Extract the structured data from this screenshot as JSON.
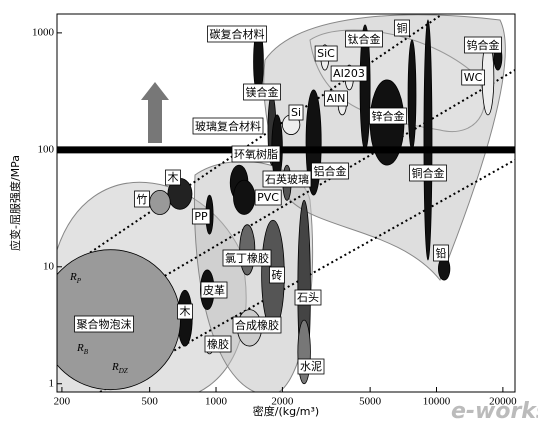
{
  "chart_data": {
    "type": "ashby",
    "xlabel": "密度/(kg/m³)",
    "ylabel": "应变-屈服强度/MPa",
    "xscale": "log",
    "yscale": "log",
    "xlim": [
      190,
      22700
    ],
    "ylim": [
      0.85,
      1450
    ],
    "xticks": [
      200,
      500,
      1000,
      2000,
      5000,
      10000,
      20000
    ],
    "yticks": [
      1,
      10,
      100,
      1000
    ],
    "reference_line": 100,
    "materials": [
      {
        "name": "碳复合材料",
        "density": [
          1480,
          1640
        ],
        "strength": [
          290,
          1100
        ],
        "color": "#111111"
      },
      {
        "name": "镁合金",
        "density": [
          1720,
          1870
        ],
        "strength": [
          74,
          295
        ],
        "color": "#333333"
      },
      {
        "name": "玻璃复合材料",
        "density": [
          1790,
          2000
        ],
        "strength": [
          55,
          199
        ],
        "color": "#111111"
      },
      {
        "name": "SiC",
        "density": [
          2990,
          3250
        ],
        "strength": [
          481,
          791
        ],
        "color": "#eeeeee"
      },
      {
        "name": "AI203",
        "density": [
          3850,
          4200
        ],
        "strength": [
          325,
          531
        ],
        "color": "#eeeeee"
      },
      {
        "name": "AlN",
        "density": [
          3580,
          3900
        ],
        "strength": [
          199,
          295
        ],
        "color": "#eeeeee"
      },
      {
        "name": "Si",
        "density": [
          2000,
          2400
        ],
        "strength": [
          135,
          199
        ],
        "color": "#eeeeee"
      },
      {
        "name": "钛合金",
        "density": [
          4500,
          5000
        ],
        "strength": [
          100,
          1170
        ],
        "color": "#111111"
      },
      {
        "name": "铜",
        "density": [
          7430,
          8070
        ],
        "strength": [
          100,
          870
        ],
        "color": "#111111"
      },
      {
        "name": "锌合金",
        "density": [
          5000,
          7120
        ],
        "strength": [
          74,
          396
        ],
        "color": "#111111"
      },
      {
        "name": "铜合金",
        "density": [
          8770,
          9540
        ],
        "strength": [
          11.4,
          1290
        ],
        "color": "#111111"
      },
      {
        "name": "钨合金",
        "density": [
          18200,
          19800
        ],
        "strength": [
          481,
          791
        ],
        "color": "#111111"
      },
      {
        "name": "WC",
        "density": [
          16100,
          18200
        ],
        "strength": [
          199,
          870
        ],
        "color": "#eeeeee"
      },
      {
        "name": "铝合金",
        "density": [
          2560,
          3000
        ],
        "strength": [
          41,
          325
        ],
        "color": "#111111"
      },
      {
        "name": "铅",
        "density": [
          10200,
          11500
        ],
        "strength": [
          7.7,
          12
        ],
        "color": "#111111"
      },
      {
        "name": "环氧树脂",
        "density": [
          1160,
          1396
        ],
        "strength": [
          37,
          74
        ],
        "color": "#111111"
      },
      {
        "name": "PVC",
        "density": [
          1200,
          1500
        ],
        "strength": [
          28,
          55
        ],
        "color": "#111111"
      },
      {
        "name": "石英玻璃",
        "density": [
          2010,
          2190
        ],
        "strength": [
          37,
          74
        ],
        "color": "#555555"
      },
      {
        "name": "木",
        "density": [
          605,
          778
        ],
        "strength": [
          31,
          57
        ],
        "color": "#222222"
      },
      {
        "name": "竹",
        "density": [
          500,
          620
        ],
        "strength": [
          28,
          45
        ],
        "color": "#999999"
      },
      {
        "name": "PP",
        "density": [
          900,
          970
        ],
        "strength": [
          19,
          41
        ],
        "color": "#111111"
      },
      {
        "name": "氯丁橡胶",
        "density": [
          1280,
          1500
        ],
        "strength": [
          8.5,
          22.9
        ],
        "color": "#666666"
      },
      {
        "name": "砖",
        "density": [
          1610,
          2040
        ],
        "strength": [
          2.9,
          25
        ],
        "color": "#555555"
      },
      {
        "name": "石头",
        "density": [
          2350,
          2680
        ],
        "strength": [
          1.1,
          37
        ],
        "color": "#444444"
      },
      {
        "name": "皮革",
        "density": [
          850,
          980
        ],
        "strength": [
          4.3,
          9.4
        ],
        "color": "#111111"
      },
      {
        "name": "木",
        "density": [
          670,
          780
        ],
        "strength": [
          2.1,
          6.3
        ],
        "color": "#111111"
      },
      {
        "name": "聚合物泡沫",
        "density": [
          160,
          690
        ],
        "strength": [
          0.89,
          14
        ],
        "color": "#9a9a9a"
      },
      {
        "name": "合成橡胶",
        "density": [
          1250,
          1610
        ],
        "strength": [
          2.1,
          4.3
        ],
        "color": "#cccccc"
      },
      {
        "name": "橡胶",
        "density": [
          900,
          970
        ],
        "strength": [
          1.8,
          2.4
        ],
        "color": "#dddddd"
      },
      {
        "name": "水泥",
        "density": [
          2350,
          2680
        ],
        "strength": [
          1.0,
          3.5
        ],
        "color": "#777777"
      }
    ],
    "guides": [
      {
        "symbol": "R",
        "subscript": "P",
        "x": [
          190,
          10370
        ],
        "y": [
          8.5,
          1400
        ]
      },
      {
        "symbol": "R",
        "subscript": "B",
        "x": [
          190,
          22700
        ],
        "y": [
          2.4,
          481
        ]
      },
      {
        "symbol": "R",
        "subscript": "DZ",
        "x": [
          298,
          22700
        ],
        "y": [
          0.85,
          82
        ]
      }
    ],
    "watermark": "e-works"
  }
}
